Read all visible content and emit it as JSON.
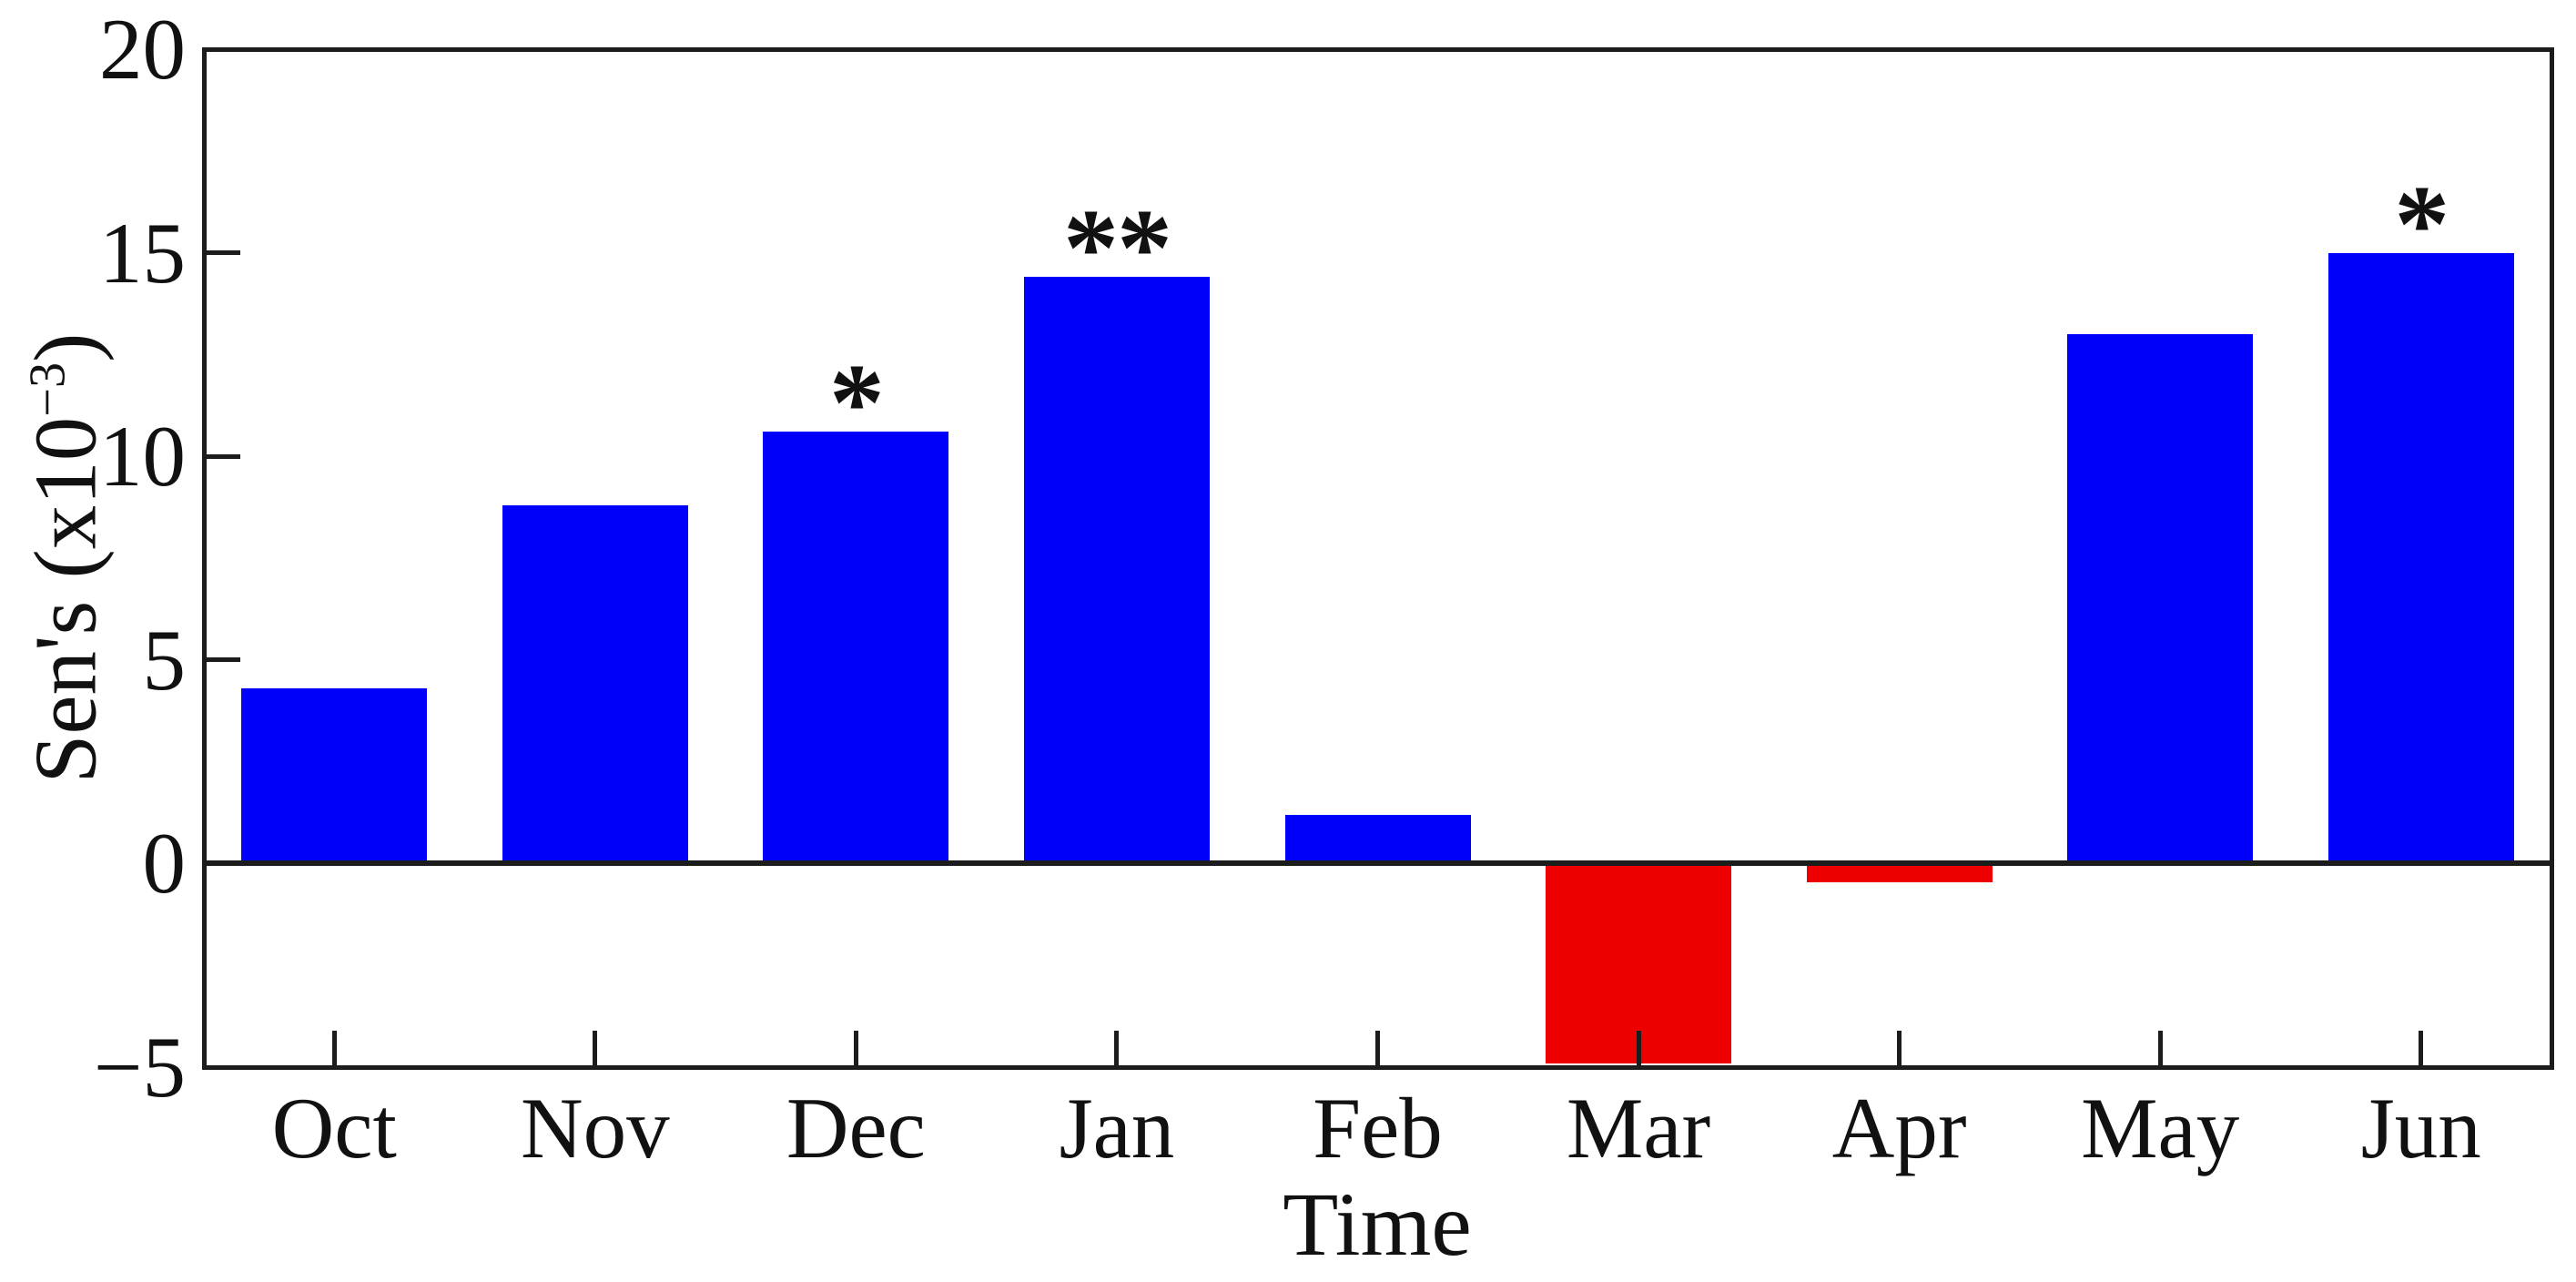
{
  "chart_data": {
    "type": "bar",
    "title": "",
    "xlabel": "Time",
    "ylabel": "Sen's (x10−3)",
    "ylabel_parts": {
      "pre": "Sen's (x10",
      "sup": "−3",
      "post": ")"
    },
    "categories": [
      "Oct",
      "Nov",
      "Dec",
      "Jan",
      "Feb",
      "Mar",
      "Apr",
      "May",
      "Jun"
    ],
    "values": [
      4.3,
      8.8,
      10.6,
      14.4,
      1.2,
      -4.9,
      -0.45,
      13.0,
      15.0
    ],
    "significance": [
      "",
      "",
      "*",
      "**",
      "",
      "",
      "",
      "",
      "*"
    ],
    "series_note": "positive values blue, negative values red",
    "ylim": [
      -5,
      20
    ],
    "yticks": [
      {
        "label": "20",
        "value": 20,
        "tick": false
      },
      {
        "label": "15",
        "value": 15,
        "tick": true
      },
      {
        "label": "10",
        "value": 10,
        "tick": true
      },
      {
        "label": "5",
        "value": 5,
        "tick": true
      },
      {
        "label": "0",
        "value": 0,
        "tick": false
      },
      {
        "label": "−5",
        "value": -5,
        "tick": false
      }
    ],
    "grid": false,
    "legend": "none",
    "colors": {
      "positive_bar": "#0000fa",
      "negative_bar": "#ec0000",
      "axis": "#1c1c1c",
      "text": "#111111",
      "background": "#ffffff"
    }
  }
}
